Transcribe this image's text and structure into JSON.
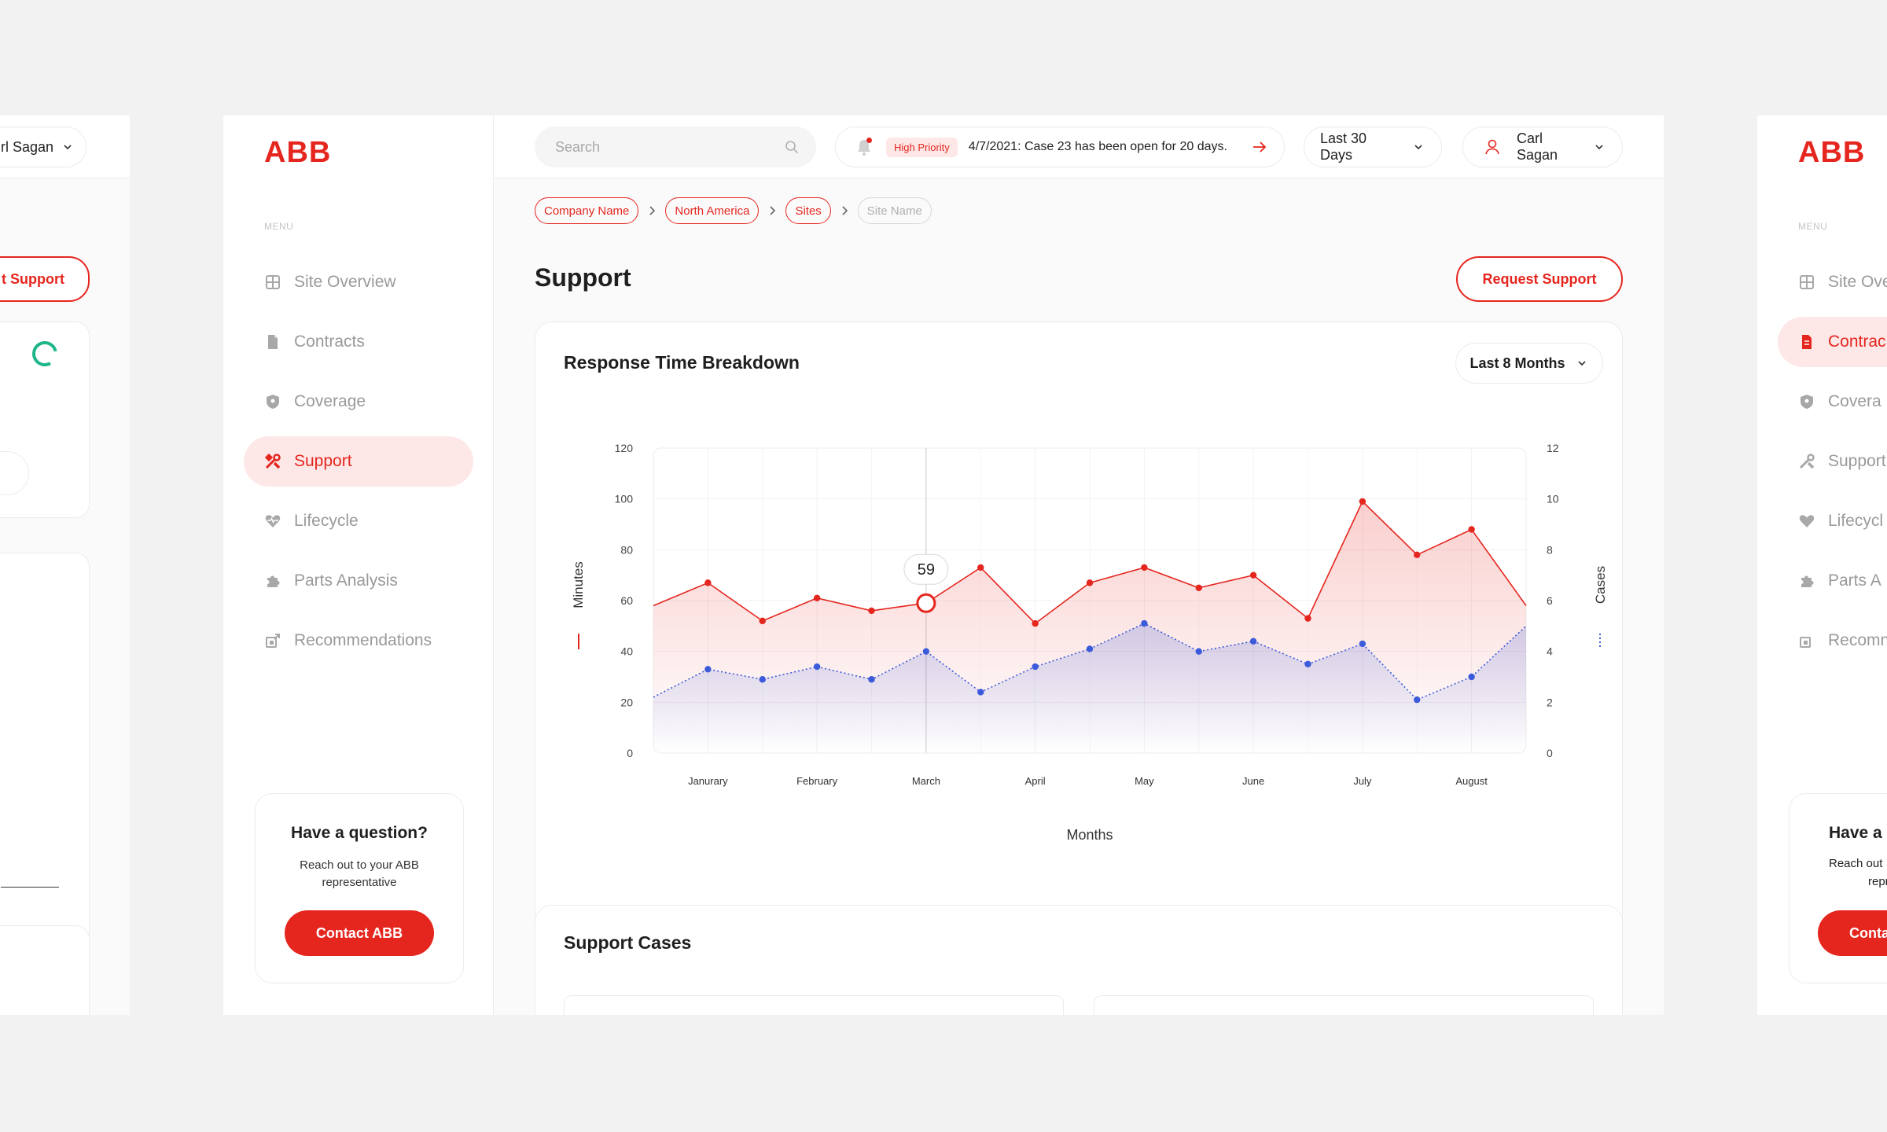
{
  "brand": {
    "logo_text": "ABB",
    "accent": "#e5261f",
    "secondary": "#3b5bdb"
  },
  "sidebar": {
    "menu_heading": "MENU",
    "items": [
      {
        "label": "Site Overview",
        "icon": "grid-icon"
      },
      {
        "label": "Contracts",
        "icon": "document-icon"
      },
      {
        "label": "Coverage",
        "icon": "shield-icon"
      },
      {
        "label": "Support",
        "icon": "tools-icon",
        "active": true
      },
      {
        "label": "Lifecycle",
        "icon": "heart-pulse-icon"
      },
      {
        "label": "Parts Analysis",
        "icon": "puzzle-icon"
      },
      {
        "label": "Recommendations",
        "icon": "recommendations-icon"
      }
    ],
    "help": {
      "title": "Have a question?",
      "text": "Reach out to your ABB representative",
      "button": "Contact ABB"
    }
  },
  "topbar": {
    "search_placeholder": "Search",
    "notice_badge": "High Priority",
    "notice_text": "4/7/2021: Case 23 has been open for 20 days.",
    "range": "Last 30 Days",
    "user": "Carl Sagan"
  },
  "breadcrumb": [
    "Company Name",
    "North America",
    "Sites",
    "Site Name"
  ],
  "page": {
    "title": "Support",
    "request_button": "Request Support"
  },
  "chart_card": {
    "title": "Response Time Breakdown",
    "range": "Last 8 Months"
  },
  "cases_card": {
    "title": "Support Cases"
  },
  "chart_data": {
    "type": "line",
    "title": "Response Time Breakdown",
    "xlabel": "Months",
    "ylabel": "Minutes",
    "y2label": "Cases",
    "ylim": [
      0,
      120
    ],
    "y2lim": [
      0,
      12
    ],
    "yticks": [
      0,
      20,
      40,
      60,
      80,
      100,
      120
    ],
    "y2ticks": [
      0,
      2,
      4,
      6,
      8,
      10,
      12
    ],
    "x_tick_labels": [
      "Janurary",
      "February",
      "March",
      "April",
      "May",
      "June",
      "July",
      "August"
    ],
    "grid": true,
    "tooltip": {
      "value": "59"
    },
    "series": [
      {
        "name": "Minutes",
        "axis": "left",
        "color": "#e5261f",
        "style": "solid",
        "x": [
          0.5,
          1,
          1.5,
          2,
          2.5,
          3,
          3.5,
          4,
          4.5,
          5,
          5.5,
          6,
          6.5,
          7,
          7.5,
          8,
          8.5,
          9
        ],
        "values": [
          58,
          67,
          52,
          61,
          56,
          59,
          73,
          51,
          67,
          73,
          65,
          70,
          53,
          99,
          78,
          88,
          58,
          null
        ]
      },
      {
        "name": "Cases",
        "axis": "right",
        "color": "#3b5bdb",
        "style": "dotted",
        "x": [
          0.5,
          1,
          1.5,
          2,
          2.5,
          3,
          3.5,
          4,
          4.5,
          5,
          5.5,
          6,
          6.5,
          7,
          7.5,
          8,
          8.5
        ],
        "values": [
          2.2,
          3.3,
          2.9,
          3.4,
          2.9,
          4.0,
          2.4,
          3.4,
          4.1,
          5.1,
          4.0,
          4.4,
          3.5,
          4.3,
          2.1,
          3.0,
          5.0
        ]
      }
    ]
  },
  "left_peek": {
    "user": "rl Sagan",
    "button": "t Support"
  },
  "right_peek": {
    "logo_text": "ABB",
    "menu_heading": "MENU",
    "items": [
      "Site Ove",
      "Contrac",
      "Covera",
      "Support",
      "Lifecycl",
      "Parts A",
      "Recomn"
    ],
    "help_title": "Have a q",
    "help_line1": "Reach out",
    "help_line2": "repres",
    "button": "Conta"
  }
}
